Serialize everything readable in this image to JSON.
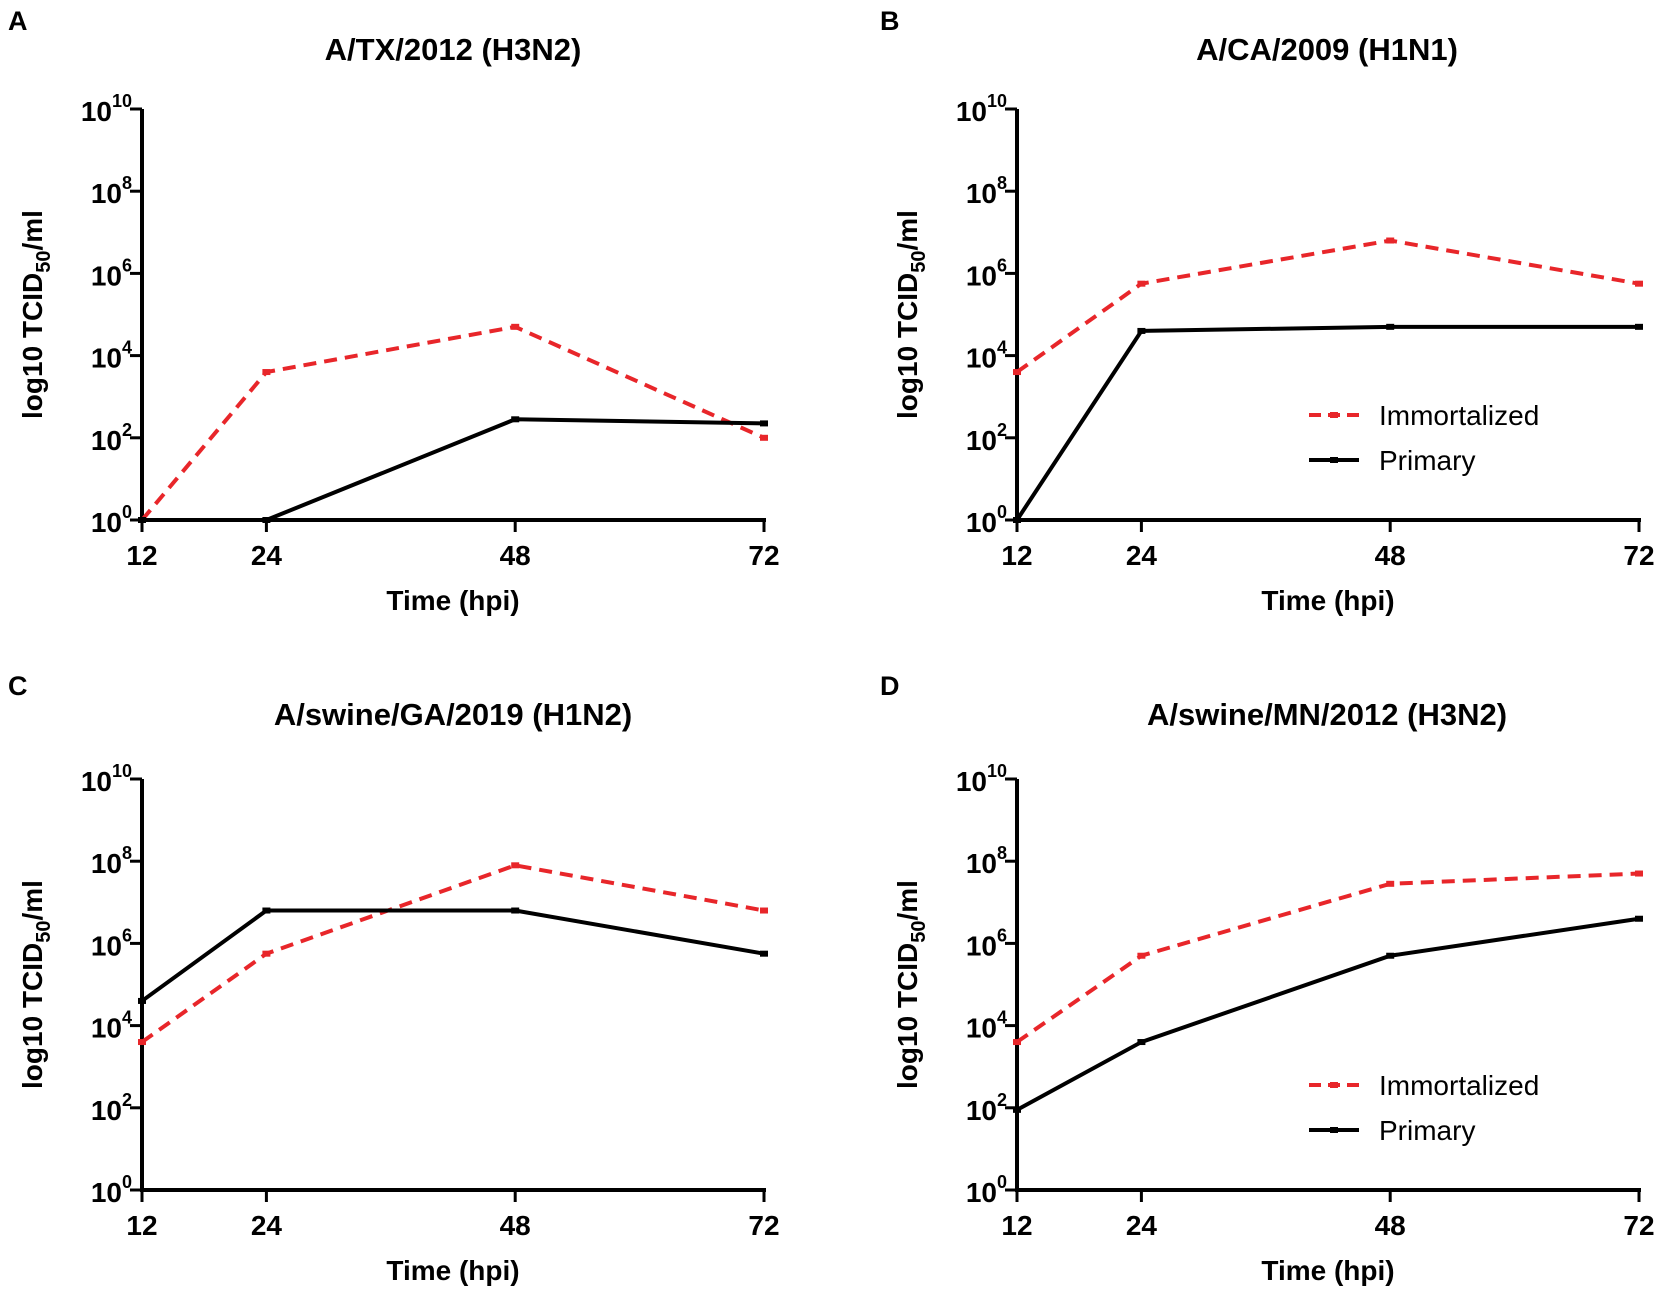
{
  "chart_data": [
    {
      "type": "line",
      "panel": "A",
      "title": "A/TX/2012 (H3N2)",
      "xlabel": "Time (hpi)",
      "ylabel": "log10 TCID50/ml",
      "ylabel_parts": {
        "main": "log10 TCID",
        "sub": "50",
        "tail": "/ml"
      },
      "x": [
        12,
        24,
        48,
        72
      ],
      "x_tick_labels": [
        "12",
        "24",
        "48",
        "72"
      ],
      "y_ticks": [
        {
          "base": "10",
          "exp": "0",
          "value": 0
        },
        {
          "base": "10",
          "exp": "2",
          "value": 2
        },
        {
          "base": "10",
          "exp": "4",
          "value": 4
        },
        {
          "base": "10",
          "exp": "6",
          "value": 6
        },
        {
          "base": "10",
          "exp": "8",
          "value": 8
        },
        {
          "base": "10",
          "exp": "10",
          "value": 10
        }
      ],
      "ylim_log10": [
        0,
        10
      ],
      "show_legend": false,
      "series": [
        {
          "name": "Immortalized",
          "color": "#e8262a",
          "style": "dashed",
          "log10_values": [
            0,
            3.6,
            4.7,
            2.0
          ]
        },
        {
          "name": "Primary",
          "color": "#000000",
          "style": "solid",
          "log10_values": [
            0,
            0,
            2.45,
            2.35
          ]
        }
      ]
    },
    {
      "type": "line",
      "panel": "B",
      "title": "A/CA/2009 (H1N1)",
      "xlabel": "Time (hpi)",
      "ylabel": "log10 TCID50/ml",
      "ylabel_parts": {
        "main": "log10 TCID",
        "sub": "50",
        "tail": "/ml"
      },
      "x": [
        12,
        24,
        48,
        72
      ],
      "x_tick_labels": [
        "12",
        "24",
        "48",
        "72"
      ],
      "y_ticks": [
        {
          "base": "10",
          "exp": "0",
          "value": 0
        },
        {
          "base": "10",
          "exp": "2",
          "value": 2
        },
        {
          "base": "10",
          "exp": "4",
          "value": 4
        },
        {
          "base": "10",
          "exp": "6",
          "value": 6
        },
        {
          "base": "10",
          "exp": "8",
          "value": 8
        },
        {
          "base": "10",
          "exp": "10",
          "value": 10
        }
      ],
      "ylim_log10": [
        0,
        10
      ],
      "show_legend": true,
      "legend_position": "bottom-right",
      "series": [
        {
          "name": "Immortalized",
          "color": "#e8262a",
          "style": "dashed",
          "log10_values": [
            3.6,
            5.75,
            6.8,
            5.75
          ]
        },
        {
          "name": "Primary",
          "color": "#000000",
          "style": "solid",
          "log10_values": [
            0,
            4.6,
            4.7,
            4.7
          ]
        }
      ]
    },
    {
      "type": "line",
      "panel": "C",
      "title": "A/swine/GA/2019 (H1N2)",
      "xlabel": "Time (hpi)",
      "ylabel": "log10 TCID50/ml",
      "ylabel_parts": {
        "main": "log10 TCID",
        "sub": "50",
        "tail": "/ml"
      },
      "x": [
        12,
        24,
        48,
        72
      ],
      "x_tick_labels": [
        "12",
        "24",
        "48",
        "72"
      ],
      "y_ticks": [
        {
          "base": "10",
          "exp": "0",
          "value": 0
        },
        {
          "base": "10",
          "exp": "2",
          "value": 2
        },
        {
          "base": "10",
          "exp": "4",
          "value": 4
        },
        {
          "base": "10",
          "exp": "6",
          "value": 6
        },
        {
          "base": "10",
          "exp": "8",
          "value": 8
        },
        {
          "base": "10",
          "exp": "10",
          "value": 10
        }
      ],
      "ylim_log10": [
        0,
        10
      ],
      "show_legend": false,
      "series": [
        {
          "name": "Immortalized",
          "color": "#e8262a",
          "style": "dashed",
          "log10_values": [
            3.6,
            5.75,
            7.9,
            6.8
          ]
        },
        {
          "name": "Primary",
          "color": "#000000",
          "style": "solid",
          "log10_values": [
            4.6,
            6.8,
            6.8,
            5.75
          ]
        }
      ]
    },
    {
      "type": "line",
      "panel": "D",
      "title": "A/swine/MN/2012 (H3N2)",
      "xlabel": "Time (hpi)",
      "ylabel": "log10 TCID50/ml",
      "ylabel_parts": {
        "main": "log10 TCID",
        "sub": "50",
        "tail": "/ml"
      },
      "x": [
        12,
        24,
        48,
        72
      ],
      "x_tick_labels": [
        "12",
        "24",
        "48",
        "72"
      ],
      "y_ticks": [
        {
          "base": "10",
          "exp": "0",
          "value": 0
        },
        {
          "base": "10",
          "exp": "2",
          "value": 2
        },
        {
          "base": "10",
          "exp": "4",
          "value": 4
        },
        {
          "base": "10",
          "exp": "6",
          "value": 6
        },
        {
          "base": "10",
          "exp": "8",
          "value": 8
        },
        {
          "base": "10",
          "exp": "10",
          "value": 10
        }
      ],
      "ylim_log10": [
        0,
        10
      ],
      "show_legend": true,
      "legend_position": "bottom-right",
      "series": [
        {
          "name": "Immortalized",
          "color": "#e8262a",
          "style": "dashed",
          "log10_values": [
            3.6,
            5.7,
            7.45,
            7.7
          ]
        },
        {
          "name": "Primary",
          "color": "#000000",
          "style": "solid",
          "log10_values": [
            1.95,
            3.6,
            5.7,
            6.6
          ]
        }
      ]
    }
  ]
}
